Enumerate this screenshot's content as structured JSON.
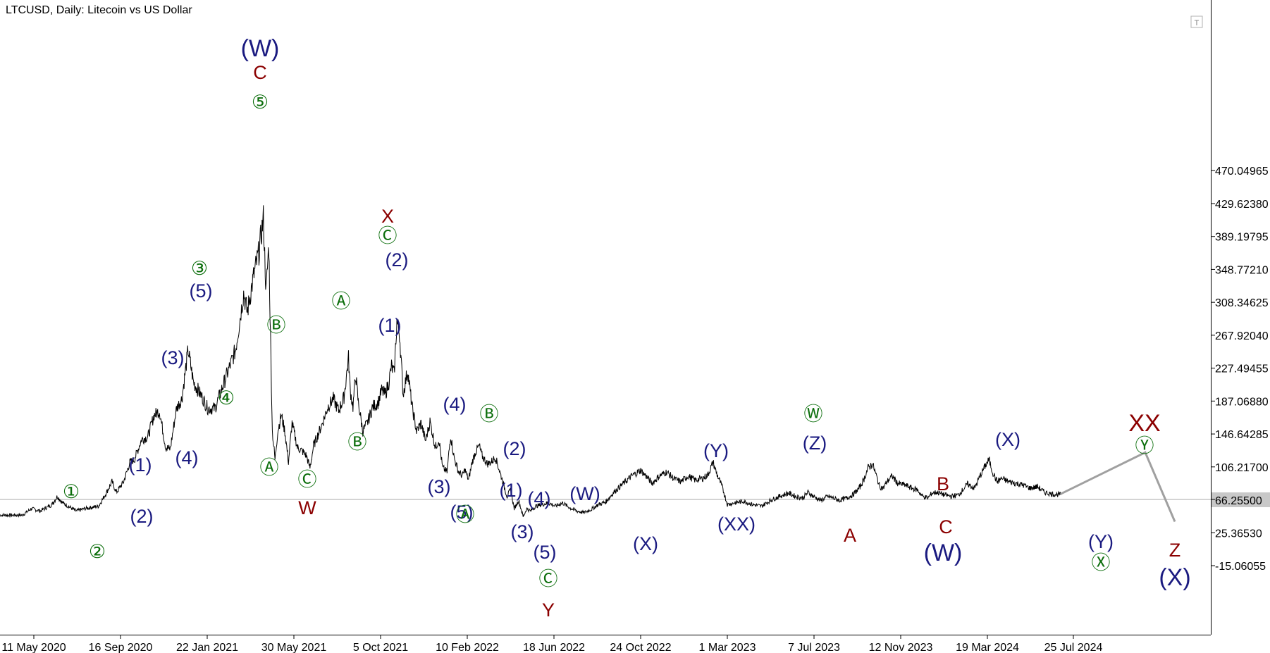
{
  "window_title": "LTCUSD, Daily:  Litecoin vs US Dollar",
  "corner_button": "T",
  "current_price": "66.25500",
  "colors": {
    "price": "#000000",
    "navy": "#1a1a80",
    "red": "#8b0000",
    "green": "#0b6e0b",
    "projection": "#a0a0a0",
    "current_line": "#a8a8a8"
  },
  "chart_data": {
    "type": "line",
    "title": "LTCUSD, Daily:  Litecoin vs US Dollar",
    "xlabel": "",
    "ylabel": "",
    "ylim": [
      -5,
      500
    ],
    "grid": false,
    "x_tick_labels": [
      "11 May 2020",
      "16 Sep 2020",
      "22 Jan 2021",
      "30 May 2021",
      "5 Oct 2021",
      "10 Feb 2022",
      "18 Jun 2022",
      "24 Oct 2022",
      "1 Mar 2023",
      "7 Jul 2023",
      "12 Nov 2023",
      "19 Mar 2024",
      "25 Jul 2024"
    ],
    "y_ticks": [
      -15.06055,
      25.3653,
      66.255,
      106.217,
      146.64285,
      187.0688,
      227.49455,
      267.9204,
      308.34625,
      348.7721,
      389.19795,
      429.6238,
      470.04965
    ],
    "y_tick_labels": [
      "-15.06055",
      "25.36530",
      "66.25500",
      "106.21700",
      "146.64285",
      "187.06880",
      "227.49455",
      "267.92040",
      "308.34625",
      "348.77210",
      "389.19795",
      "429.62380",
      "470.04965"
    ],
    "series": [
      {
        "values": [
          [
            0,
            47
          ],
          [
            25,
            47
          ],
          [
            35,
            55
          ],
          [
            45,
            52
          ],
          [
            58,
            60
          ],
          [
            64,
            70
          ],
          [
            70,
            62
          ],
          [
            85,
            52
          ],
          [
            95,
            55
          ],
          [
            110,
            58
          ],
          [
            118,
            73
          ],
          [
            125,
            88
          ],
          [
            130,
            75
          ],
          [
            138,
            88
          ],
          [
            145,
            112
          ],
          [
            150,
            115
          ],
          [
            158,
            140
          ],
          [
            165,
            143
          ],
          [
            172,
            170
          ],
          [
            178,
            175
          ],
          [
            185,
            130
          ],
          [
            190,
            128
          ],
          [
            197,
            178
          ],
          [
            203,
            190
          ],
          [
            210,
            250
          ],
          [
            216,
            210
          ],
          [
            224,
            195
          ],
          [
            232,
            178
          ],
          [
            240,
            178
          ],
          [
            247,
            200
          ],
          [
            255,
            225
          ],
          [
            263,
            250
          ],
          [
            272,
            320
          ],
          [
            276,
            296
          ],
          [
            283,
            340
          ],
          [
            289,
            370
          ],
          [
            294,
            412
          ],
          [
            297,
            320
          ],
          [
            300,
            380
          ],
          [
            304,
            150
          ],
          [
            307,
            115
          ],
          [
            310,
            150
          ],
          [
            314,
            170
          ],
          [
            318,
            150
          ],
          [
            322,
            112
          ],
          [
            326,
            160
          ],
          [
            332,
            130
          ],
          [
            338,
            125
          ],
          [
            342,
            120
          ],
          [
            346,
            105
          ],
          [
            350,
            132
          ],
          [
            355,
            146
          ],
          [
            360,
            160
          ],
          [
            366,
            180
          ],
          [
            372,
            190
          ],
          [
            378,
            175
          ],
          [
            384,
            192
          ],
          [
            389,
            240
          ],
          [
            391,
            200
          ],
          [
            394,
            180
          ],
          [
            397,
            220
          ],
          [
            400,
            185
          ],
          [
            405,
            150
          ],
          [
            410,
            160
          ],
          [
            416,
            180
          ],
          [
            422,
            185
          ],
          [
            426,
            200
          ],
          [
            430,
            195
          ],
          [
            434,
            210
          ],
          [
            437,
            230
          ],
          [
            440,
            220
          ],
          [
            443,
            285
          ],
          [
            446,
            270
          ],
          [
            450,
            195
          ],
          [
            455,
            225
          ],
          [
            460,
            180
          ],
          [
            465,
            150
          ],
          [
            470,
            160
          ],
          [
            475,
            138
          ],
          [
            480,
            162
          ],
          [
            486,
            130
          ],
          [
            490,
            140
          ],
          [
            494,
            105
          ],
          [
            499,
            100
          ],
          [
            503,
            145
          ],
          [
            507,
            117
          ],
          [
            512,
            100
          ],
          [
            516,
            95
          ],
          [
            519,
            103
          ],
          [
            523,
            90
          ],
          [
            527,
            112
          ],
          [
            531,
            125
          ],
          [
            535,
            132
          ],
          [
            538,
            120
          ],
          [
            544,
            110
          ],
          [
            548,
            112
          ],
          [
            553,
            118
          ],
          [
            558,
            100
          ],
          [
            562,
            85
          ],
          [
            566,
            70
          ],
          [
            570,
            78
          ],
          [
            574,
            55
          ],
          [
            579,
            65
          ],
          [
            584,
            45
          ],
          [
            588,
            55
          ],
          [
            592,
            52
          ],
          [
            598,
            58
          ],
          [
            605,
            60
          ],
          [
            612,
            62
          ],
          [
            620,
            58
          ],
          [
            628,
            62
          ],
          [
            636,
            56
          ],
          [
            644,
            52
          ],
          [
            652,
            50
          ],
          [
            660,
            54
          ],
          [
            668,
            60
          ],
          [
            676,
            63
          ],
          [
            685,
            75
          ],
          [
            695,
            85
          ],
          [
            705,
            95
          ],
          [
            715,
            102
          ],
          [
            722,
            94
          ],
          [
            728,
            86
          ],
          [
            736,
            95
          ],
          [
            744,
            100
          ],
          [
            752,
            92
          ],
          [
            760,
            88
          ],
          [
            768,
            95
          ],
          [
            776,
            90
          ],
          [
            784,
            92
          ],
          [
            790,
            96
          ],
          [
            796,
            112
          ],
          [
            800,
            98
          ],
          [
            806,
            82
          ],
          [
            812,
            60
          ],
          [
            820,
            62
          ],
          [
            830,
            64
          ],
          [
            840,
            60
          ],
          [
            850,
            58
          ],
          [
            860,
            65
          ],
          [
            870,
            70
          ],
          [
            880,
            74
          ],
          [
            888,
            70
          ],
          [
            896,
            68
          ],
          [
            902,
            75
          ],
          [
            908,
            70
          ],
          [
            916,
            65
          ],
          [
            924,
            70
          ],
          [
            930,
            68
          ],
          [
            937,
            65
          ],
          [
            945,
            68
          ],
          [
            952,
            72
          ],
          [
            959,
            80
          ],
          [
            964,
            90
          ],
          [
            969,
            105
          ],
          [
            974,
            110
          ],
          [
            978,
            96
          ],
          [
            982,
            82
          ],
          [
            986,
            80
          ],
          [
            990,
            88
          ],
          [
            996,
            95
          ],
          [
            1002,
            86
          ],
          [
            1010,
            84
          ],
          [
            1018,
            80
          ],
          [
            1024,
            78
          ],
          [
            1030,
            70
          ],
          [
            1036,
            68
          ],
          [
            1040,
            74
          ],
          [
            1046,
            75
          ],
          [
            1054,
            72
          ],
          [
            1062,
            70
          ],
          [
            1070,
            72
          ],
          [
            1080,
            85
          ],
          [
            1088,
            80
          ],
          [
            1094,
            95
          ],
          [
            1100,
            108
          ],
          [
            1104,
            115
          ],
          [
            1108,
            100
          ],
          [
            1113,
            88
          ],
          [
            1118,
            92
          ],
          [
            1126,
            88
          ],
          [
            1134,
            86
          ],
          [
            1142,
            84
          ],
          [
            1150,
            80
          ],
          [
            1158,
            82
          ],
          [
            1166,
            75
          ],
          [
            1174,
            73
          ],
          [
            1184,
            72
          ]
        ]
      }
    ]
  },
  "labels": [
    {
      "t": "(W)",
      "c": "navy",
      "s": "big"
    },
    {
      "t": "C",
      "c": "red",
      "s": "norm"
    },
    {
      "t": "⑤",
      "c": "green",
      "s": "norm"
    },
    {
      "t": "①",
      "c": "green",
      "s": "norm"
    },
    {
      "t": "②",
      "c": "green",
      "s": "norm"
    },
    {
      "t": "(1)",
      "c": "navy",
      "s": "norm"
    },
    {
      "t": "(2)",
      "c": "navy",
      "s": "norm"
    },
    {
      "t": "(3)",
      "c": "navy",
      "s": "norm"
    },
    {
      "t": "(4)",
      "c": "navy",
      "s": "norm"
    },
    {
      "t": "③",
      "c": "green",
      "s": "norm"
    },
    {
      "t": "(5)",
      "c": "navy",
      "s": "norm"
    },
    {
      "t": "④",
      "c": "green",
      "s": "norm"
    },
    {
      "t": "Ⓑ",
      "c": "green",
      "s": "norm"
    },
    {
      "t": "Ⓐ",
      "c": "green",
      "s": "norm"
    },
    {
      "t": "Ⓒ",
      "c": "green",
      "s": "norm"
    },
    {
      "t": "W",
      "c": "red",
      "s": "norm"
    },
    {
      "t": "Ⓐ",
      "c": "green",
      "s": "norm"
    },
    {
      "t": "Ⓑ",
      "c": "green",
      "s": "norm"
    },
    {
      "t": "X",
      "c": "red",
      "s": "norm"
    },
    {
      "t": "Ⓒ",
      "c": "green",
      "s": "norm"
    },
    {
      "t": "(2)",
      "c": "navy",
      "s": "norm"
    },
    {
      "t": "(1)",
      "c": "navy",
      "s": "norm"
    },
    {
      "t": "(4)",
      "c": "navy",
      "s": "norm"
    },
    {
      "t": "Ⓑ",
      "c": "green",
      "s": "norm"
    },
    {
      "t": "(2)",
      "c": "navy",
      "s": "norm"
    },
    {
      "t": "(3)",
      "c": "navy",
      "s": "norm"
    },
    {
      "t": "(5)",
      "c": "navy",
      "s": "norm"
    },
    {
      "t": "Ⓐ",
      "c": "green",
      "s": "norm"
    },
    {
      "t": "(1)",
      "c": "navy",
      "s": "norm"
    },
    {
      "t": "(4)",
      "c": "navy",
      "s": "norm"
    },
    {
      "t": "(3)",
      "c": "navy",
      "s": "norm"
    },
    {
      "t": "(5)",
      "c": "navy",
      "s": "norm"
    },
    {
      "t": "Ⓒ",
      "c": "green",
      "s": "norm"
    },
    {
      "t": "Y",
      "c": "red",
      "s": "norm"
    },
    {
      "t": "(W)",
      "c": "navy",
      "s": "norm"
    },
    {
      "t": "(X)",
      "c": "navy",
      "s": "norm"
    },
    {
      "t": "(Y)",
      "c": "navy",
      "s": "norm"
    },
    {
      "t": "(XX)",
      "c": "navy",
      "s": "norm"
    },
    {
      "t": "Ⓦ",
      "c": "green",
      "s": "norm"
    },
    {
      "t": "(Z)",
      "c": "navy",
      "s": "norm"
    },
    {
      "t": "A",
      "c": "red",
      "s": "norm"
    },
    {
      "t": "B",
      "c": "red",
      "s": "norm"
    },
    {
      "t": "C",
      "c": "red",
      "s": "norm"
    },
    {
      "t": "(W)",
      "c": "navy",
      "s": "big"
    },
    {
      "t": "(X)",
      "c": "navy",
      "s": "norm"
    },
    {
      "t": "(Y)",
      "c": "navy",
      "s": "norm"
    },
    {
      "t": "Ⓧ",
      "c": "green",
      "s": "norm"
    },
    {
      "t": "XX",
      "c": "red",
      "s": "big"
    },
    {
      "t": "Ⓨ",
      "c": "green",
      "s": "norm"
    },
    {
      "t": "Z",
      "c": "red",
      "s": "norm"
    },
    {
      "t": "(X)",
      "c": "navy",
      "s": "big"
    }
  ]
}
